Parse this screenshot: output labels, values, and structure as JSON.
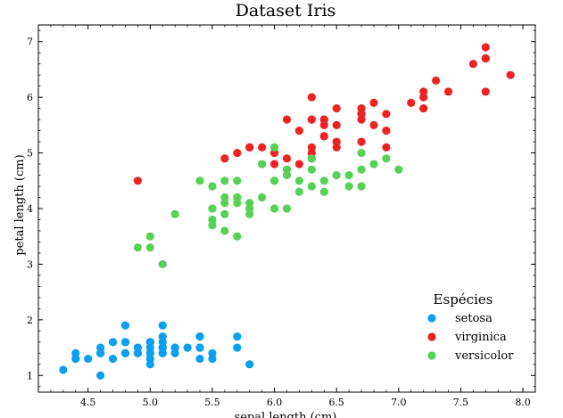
{
  "chart_data": {
    "type": "scatter",
    "title": "Dataset Iris",
    "xlabel": "sepal length (cm)",
    "ylabel": "petal length (cm)",
    "xlim": [
      4.1,
      8.1
    ],
    "ylim": [
      0.7,
      7.3
    ],
    "xticks": [
      4.5,
      5.0,
      5.5,
      6.0,
      6.5,
      7.0,
      7.5,
      8.0
    ],
    "xtick_labels": [
      "4.5",
      "5.0",
      "5.5",
      "6.0",
      "6.5",
      "7.0",
      "7.5",
      "8.0"
    ],
    "yticks": [
      1,
      2,
      3,
      4,
      5,
      6,
      7
    ],
    "ytick_labels": [
      "1",
      "2",
      "3",
      "4",
      "5",
      "6",
      "7"
    ],
    "grid": false,
    "legend": {
      "title": "Espécies",
      "placement": "bottom-right"
    },
    "series": [
      {
        "name": "setosa",
        "color": "#0a9ff0",
        "points": [
          [
            5.1,
            1.4
          ],
          [
            4.9,
            1.4
          ],
          [
            4.7,
            1.3
          ],
          [
            4.6,
            1.5
          ],
          [
            5.0,
            1.4
          ],
          [
            5.4,
            1.7
          ],
          [
            4.6,
            1.4
          ],
          [
            5.0,
            1.5
          ],
          [
            4.4,
            1.4
          ],
          [
            4.9,
            1.5
          ],
          [
            5.4,
            1.5
          ],
          [
            4.8,
            1.6
          ],
          [
            4.8,
            1.4
          ],
          [
            4.3,
            1.1
          ],
          [
            5.8,
            1.2
          ],
          [
            5.7,
            1.5
          ],
          [
            5.4,
            1.3
          ],
          [
            5.1,
            1.4
          ],
          [
            5.7,
            1.7
          ],
          [
            5.1,
            1.5
          ],
          [
            5.4,
            1.7
          ],
          [
            5.1,
            1.5
          ],
          [
            4.6,
            1.0
          ],
          [
            5.1,
            1.7
          ],
          [
            4.8,
            1.9
          ],
          [
            5.0,
            1.6
          ],
          [
            5.0,
            1.6
          ],
          [
            5.2,
            1.5
          ],
          [
            5.2,
            1.4
          ],
          [
            4.7,
            1.6
          ],
          [
            4.8,
            1.6
          ],
          [
            5.4,
            1.5
          ],
          [
            5.2,
            1.5
          ],
          [
            5.5,
            1.4
          ],
          [
            4.9,
            1.5
          ],
          [
            5.0,
            1.2
          ],
          [
            5.5,
            1.3
          ],
          [
            4.9,
            1.4
          ],
          [
            4.4,
            1.3
          ],
          [
            5.1,
            1.5
          ],
          [
            5.0,
            1.3
          ],
          [
            4.5,
            1.3
          ],
          [
            4.4,
            1.3
          ],
          [
            5.0,
            1.6
          ],
          [
            5.1,
            1.9
          ],
          [
            4.8,
            1.4
          ],
          [
            5.1,
            1.6
          ],
          [
            4.6,
            1.4
          ],
          [
            5.3,
            1.5
          ],
          [
            5.0,
            1.4
          ]
        ]
      },
      {
        "name": "virginica",
        "color": "#ee2222",
        "points": [
          [
            6.3,
            6.0
          ],
          [
            5.8,
            5.1
          ],
          [
            7.1,
            5.9
          ],
          [
            6.3,
            5.6
          ],
          [
            6.5,
            5.8
          ],
          [
            7.6,
            6.6
          ],
          [
            4.9,
            4.5
          ],
          [
            7.3,
            6.3
          ],
          [
            6.7,
            5.8
          ],
          [
            7.2,
            6.1
          ],
          [
            6.5,
            5.1
          ],
          [
            6.4,
            5.3
          ],
          [
            6.8,
            5.5
          ],
          [
            5.7,
            5.0
          ],
          [
            5.8,
            5.1
          ],
          [
            6.4,
            5.3
          ],
          [
            6.5,
            5.5
          ],
          [
            7.7,
            6.7
          ],
          [
            7.7,
            6.9
          ],
          [
            6.0,
            5.0
          ],
          [
            6.9,
            5.7
          ],
          [
            5.6,
            4.9
          ],
          [
            7.7,
            6.7
          ],
          [
            6.3,
            4.9
          ],
          [
            6.7,
            5.7
          ],
          [
            7.2,
            6.0
          ],
          [
            6.2,
            4.8
          ],
          [
            6.1,
            4.9
          ],
          [
            6.4,
            5.6
          ],
          [
            7.2,
            5.8
          ],
          [
            7.4,
            6.1
          ],
          [
            7.9,
            6.4
          ],
          [
            6.4,
            5.6
          ],
          [
            6.3,
            5.1
          ],
          [
            6.1,
            5.6
          ],
          [
            7.7,
            6.1
          ],
          [
            6.3,
            5.6
          ],
          [
            6.4,
            5.5
          ],
          [
            6.0,
            4.8
          ],
          [
            6.9,
            5.4
          ],
          [
            6.7,
            5.6
          ],
          [
            6.9,
            5.1
          ],
          [
            5.8,
            5.1
          ],
          [
            6.8,
            5.9
          ],
          [
            6.7,
            5.7
          ],
          [
            6.7,
            5.2
          ],
          [
            6.3,
            5.0
          ],
          [
            6.5,
            5.2
          ],
          [
            6.2,
            5.4
          ],
          [
            5.9,
            5.1
          ]
        ]
      },
      {
        "name": "versicolor",
        "color": "#55d155",
        "points": [
          [
            7.0,
            4.7
          ],
          [
            6.4,
            4.5
          ],
          [
            6.9,
            4.9
          ],
          [
            5.5,
            4.0
          ],
          [
            6.5,
            4.6
          ],
          [
            5.7,
            4.5
          ],
          [
            6.3,
            4.7
          ],
          [
            4.9,
            3.3
          ],
          [
            6.6,
            4.6
          ],
          [
            5.2,
            3.9
          ],
          [
            5.0,
            3.5
          ],
          [
            5.9,
            4.2
          ],
          [
            6.0,
            4.0
          ],
          [
            6.1,
            4.7
          ],
          [
            5.6,
            3.6
          ],
          [
            6.7,
            4.4
          ],
          [
            5.6,
            4.5
          ],
          [
            5.8,
            4.1
          ],
          [
            6.2,
            4.5
          ],
          [
            5.6,
            3.9
          ],
          [
            5.9,
            4.8
          ],
          [
            6.1,
            4.0
          ],
          [
            6.3,
            4.9
          ],
          [
            6.1,
            4.7
          ],
          [
            6.4,
            4.3
          ],
          [
            6.6,
            4.4
          ],
          [
            6.8,
            4.8
          ],
          [
            6.7,
            5.0
          ],
          [
            6.0,
            4.5
          ],
          [
            5.7,
            3.5
          ],
          [
            5.5,
            3.8
          ],
          [
            5.5,
            3.7
          ],
          [
            5.8,
            3.9
          ],
          [
            6.0,
            5.1
          ],
          [
            5.4,
            4.5
          ],
          [
            6.0,
            4.5
          ],
          [
            6.7,
            4.7
          ],
          [
            6.3,
            4.4
          ],
          [
            5.6,
            4.1
          ],
          [
            5.5,
            4.0
          ],
          [
            5.5,
            4.4
          ],
          [
            6.1,
            4.6
          ],
          [
            5.8,
            4.0
          ],
          [
            5.0,
            3.3
          ],
          [
            5.6,
            4.2
          ],
          [
            5.7,
            4.2
          ],
          [
            5.7,
            4.2
          ],
          [
            6.2,
            4.3
          ],
          [
            5.1,
            3.0
          ],
          [
            5.7,
            4.1
          ]
        ]
      }
    ]
  }
}
